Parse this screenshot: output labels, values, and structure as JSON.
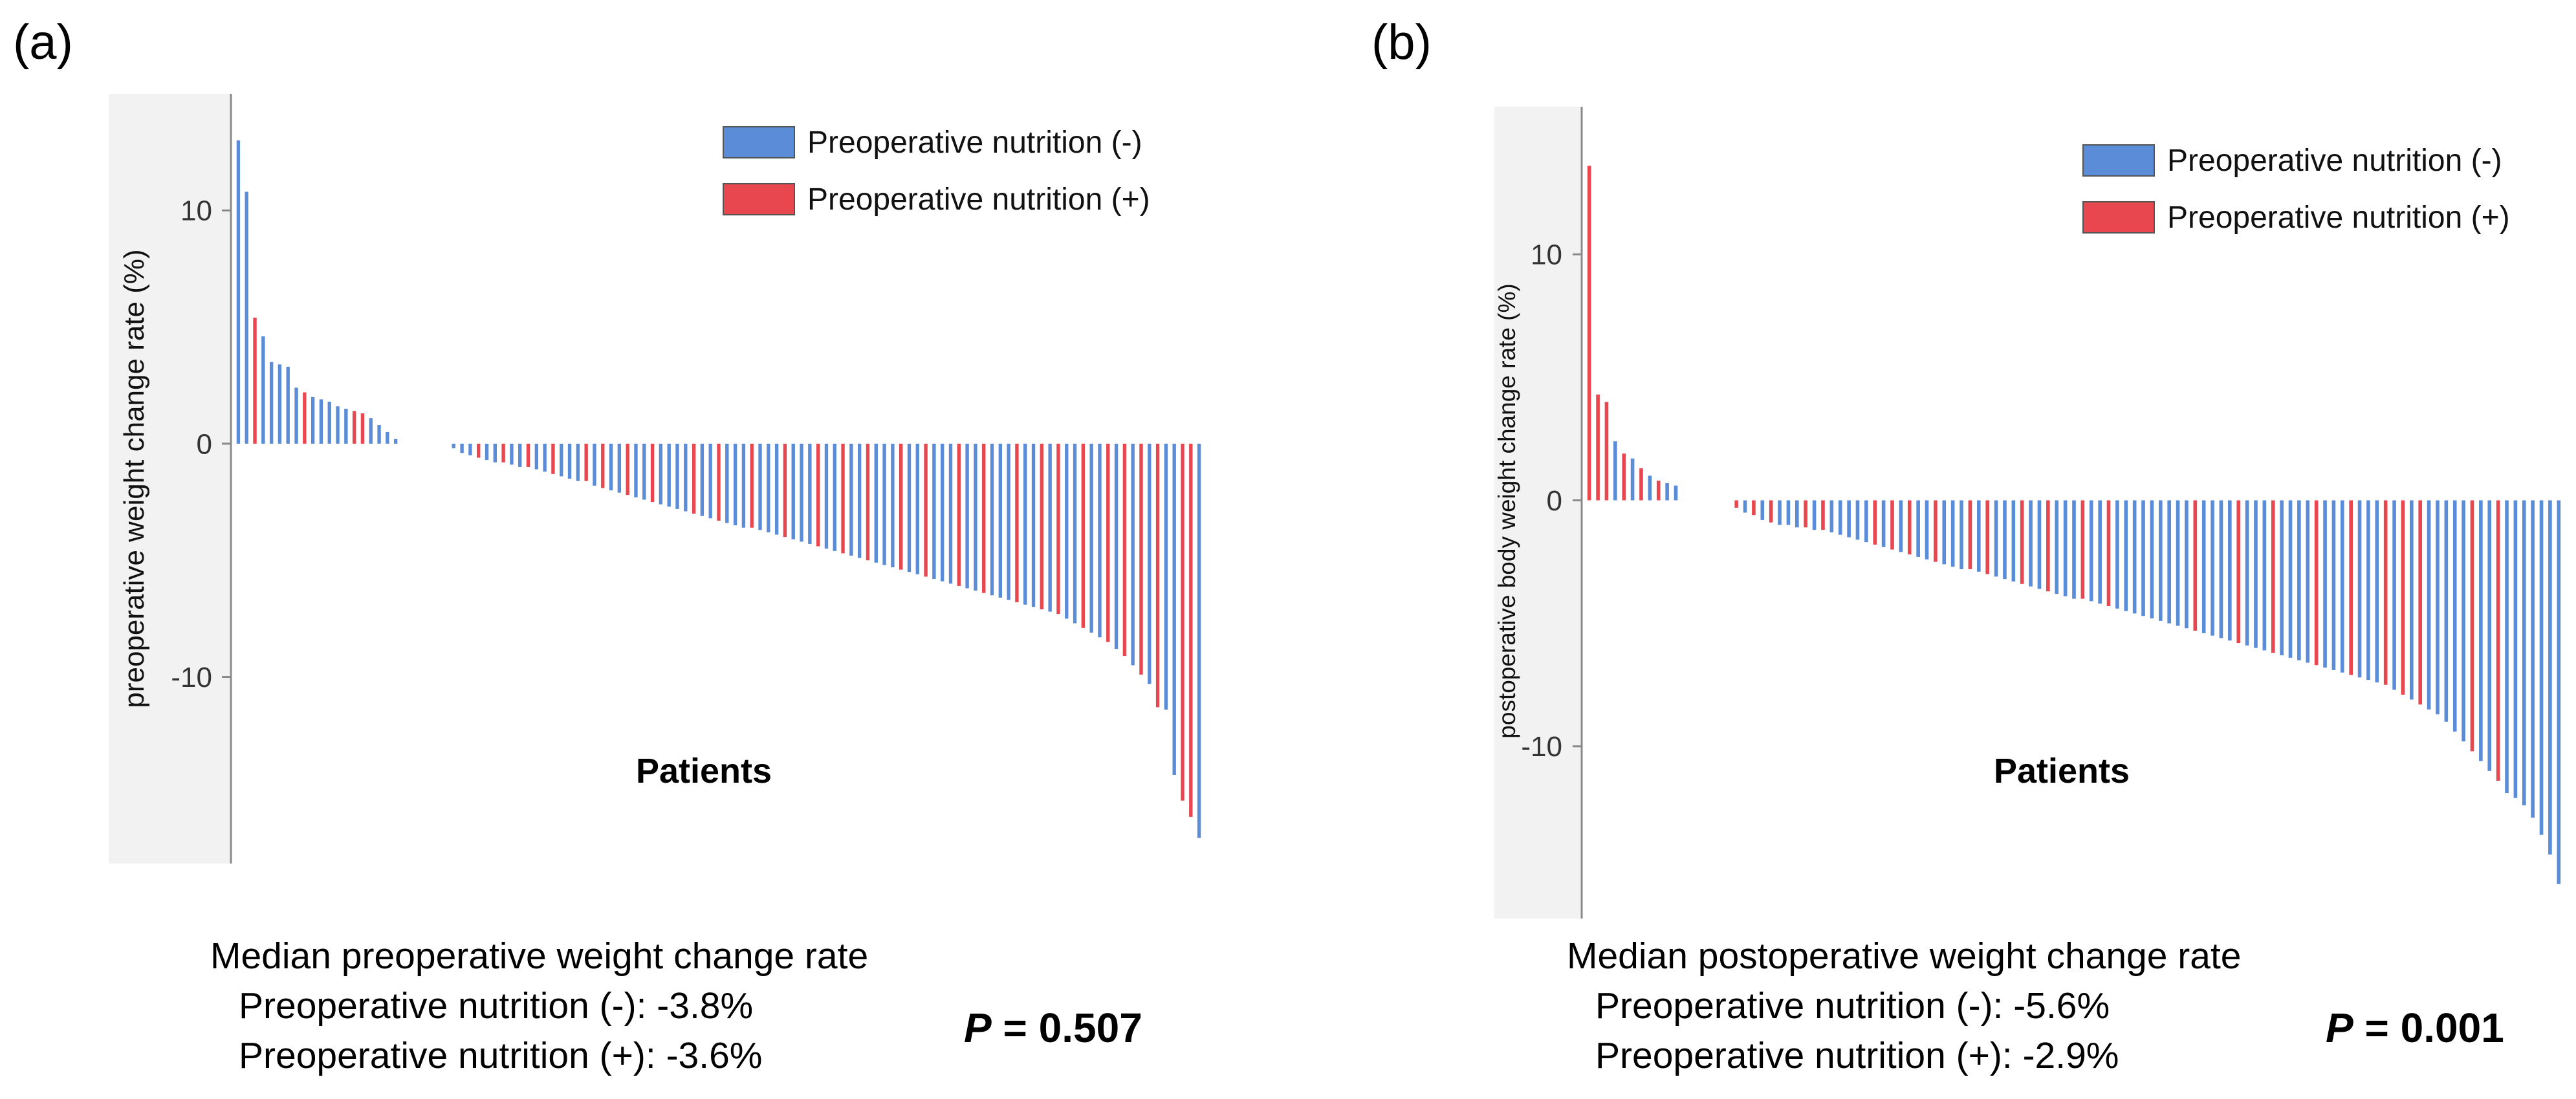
{
  "panels": [
    {
      "label": "(a)",
      "median_title": "Median preoperative weight change rate",
      "median_lines": [
        "Preoperative nutrition (-): -3.8%",
        "Preoperative nutrition (+): -3.6%"
      ],
      "p_letter": "P",
      "p_rest": "= 0.507"
    },
    {
      "label": "(b)",
      "median_title": "Median postoperative weight change rate",
      "median_lines": [
        "Preoperative nutrition (-): -5.6%",
        "Preoperative nutrition (+): -2.9%"
      ],
      "p_letter": "P",
      "p_rest": "= 0.001"
    }
  ],
  "colors": {
    "blue": "#5b8cd8",
    "red": "#e8474f",
    "plot_bg": "#f2f2f2",
    "axis": "#8a8a8a"
  },
  "chart_data": [
    {
      "type": "bar",
      "title": "",
      "xlabel": "Patients",
      "ylabel": "preoperative weight change rate (%)",
      "ylim": [
        -18,
        15
      ],
      "yticks": [
        10,
        0,
        -10
      ],
      "ytick_labels": [
        "10",
        "0",
        "-10"
      ],
      "legend": {
        "position": "top-right",
        "entries": [
          {
            "label": "Preoperative nutrition (-)",
            "color": "#5b8cd8"
          },
          {
            "label": "Preoperative nutrition (+)",
            "color": "#e8474f"
          }
        ]
      },
      "series": [
        {
          "name": "Preoperative nutrition (-)",
          "color": "#5b8cd8"
        },
        {
          "name": "Preoperative nutrition (+)",
          "color": "#e8474f"
        }
      ],
      "bars": [
        {
          "v": 13.0,
          "g": 0
        },
        {
          "v": 10.8,
          "g": 0
        },
        {
          "v": 5.4,
          "g": 1
        },
        {
          "v": 4.6,
          "g": 0
        },
        {
          "v": 3.5,
          "g": 0
        },
        {
          "v": 3.4,
          "g": 0
        },
        {
          "v": 3.3,
          "g": 0
        },
        {
          "v": 2.4,
          "g": 0
        },
        {
          "v": 2.2,
          "g": 1
        },
        {
          "v": 2.0,
          "g": 0
        },
        {
          "v": 1.9,
          "g": 0
        },
        {
          "v": 1.8,
          "g": 0
        },
        {
          "v": 1.6,
          "g": 0
        },
        {
          "v": 1.5,
          "g": 0
        },
        {
          "v": 1.4,
          "g": 1
        },
        {
          "v": 1.3,
          "g": 1
        },
        {
          "v": 1.1,
          "g": 0
        },
        {
          "v": 0.8,
          "g": 0
        },
        {
          "v": 0.5,
          "g": 0
        },
        {
          "v": 0.2,
          "g": 0
        },
        {
          "v": 0.0,
          "g": 0
        },
        {
          "v": 0.0,
          "g": 0
        },
        {
          "v": 0.0,
          "g": 0
        },
        {
          "v": 0.0,
          "g": 0
        },
        {
          "v": 0.0,
          "g": 0
        },
        {
          "v": 0.0,
          "g": 0
        },
        {
          "v": -0.2,
          "g": 0
        },
        {
          "v": -0.4,
          "g": 0
        },
        {
          "v": -0.5,
          "g": 0
        },
        {
          "v": -0.6,
          "g": 1
        },
        {
          "v": -0.7,
          "g": 0
        },
        {
          "v": -0.8,
          "g": 0
        },
        {
          "v": -0.8,
          "g": 1
        },
        {
          "v": -0.9,
          "g": 0
        },
        {
          "v": -1.0,
          "g": 0
        },
        {
          "v": -1.0,
          "g": 1
        },
        {
          "v": -1.1,
          "g": 0
        },
        {
          "v": -1.2,
          "g": 0
        },
        {
          "v": -1.3,
          "g": 1
        },
        {
          "v": -1.4,
          "g": 0
        },
        {
          "v": -1.5,
          "g": 0
        },
        {
          "v": -1.6,
          "g": 0
        },
        {
          "v": -1.6,
          "g": 1
        },
        {
          "v": -1.8,
          "g": 0
        },
        {
          "v": -1.9,
          "g": 1
        },
        {
          "v": -2.0,
          "g": 0
        },
        {
          "v": -2.1,
          "g": 0
        },
        {
          "v": -2.2,
          "g": 1
        },
        {
          "v": -2.3,
          "g": 0
        },
        {
          "v": -2.4,
          "g": 0
        },
        {
          "v": -2.5,
          "g": 1
        },
        {
          "v": -2.6,
          "g": 0
        },
        {
          "v": -2.7,
          "g": 0
        },
        {
          "v": -2.8,
          "g": 0
        },
        {
          "v": -2.9,
          "g": 0
        },
        {
          "v": -3.0,
          "g": 1
        },
        {
          "v": -3.1,
          "g": 0
        },
        {
          "v": -3.2,
          "g": 0
        },
        {
          "v": -3.3,
          "g": 1
        },
        {
          "v": -3.4,
          "g": 0
        },
        {
          "v": -3.5,
          "g": 0
        },
        {
          "v": -3.6,
          "g": 0
        },
        {
          "v": -3.6,
          "g": 1
        },
        {
          "v": -3.7,
          "g": 0
        },
        {
          "v": -3.8,
          "g": 0
        },
        {
          "v": -3.9,
          "g": 0
        },
        {
          "v": -4.0,
          "g": 1
        },
        {
          "v": -4.1,
          "g": 0
        },
        {
          "v": -4.2,
          "g": 0
        },
        {
          "v": -4.3,
          "g": 0
        },
        {
          "v": -4.4,
          "g": 1
        },
        {
          "v": -4.5,
          "g": 0
        },
        {
          "v": -4.6,
          "g": 0
        },
        {
          "v": -4.7,
          "g": 1
        },
        {
          "v": -4.8,
          "g": 0
        },
        {
          "v": -4.9,
          "g": 0
        },
        {
          "v": -5.0,
          "g": 1
        },
        {
          "v": -5.1,
          "g": 0
        },
        {
          "v": -5.2,
          "g": 0
        },
        {
          "v": -5.3,
          "g": 0
        },
        {
          "v": -5.4,
          "g": 1
        },
        {
          "v": -5.5,
          "g": 0
        },
        {
          "v": -5.6,
          "g": 0
        },
        {
          "v": -5.7,
          "g": 1
        },
        {
          "v": -5.8,
          "g": 0
        },
        {
          "v": -5.9,
          "g": 0
        },
        {
          "v": -6.0,
          "g": 0
        },
        {
          "v": -6.1,
          "g": 1
        },
        {
          "v": -6.2,
          "g": 0
        },
        {
          "v": -6.3,
          "g": 0
        },
        {
          "v": -6.4,
          "g": 1
        },
        {
          "v": -6.5,
          "g": 0
        },
        {
          "v": -6.6,
          "g": 0
        },
        {
          "v": -6.7,
          "g": 0
        },
        {
          "v": -6.8,
          "g": 1
        },
        {
          "v": -6.9,
          "g": 0
        },
        {
          "v": -7.0,
          "g": 0
        },
        {
          "v": -7.1,
          "g": 1
        },
        {
          "v": -7.2,
          "g": 0
        },
        {
          "v": -7.3,
          "g": 1
        },
        {
          "v": -7.5,
          "g": 0
        },
        {
          "v": -7.7,
          "g": 0
        },
        {
          "v": -7.9,
          "g": 1
        },
        {
          "v": -8.1,
          "g": 0
        },
        {
          "v": -8.3,
          "g": 0
        },
        {
          "v": -8.5,
          "g": 1
        },
        {
          "v": -8.8,
          "g": 0
        },
        {
          "v": -9.1,
          "g": 1
        },
        {
          "v": -9.5,
          "g": 0
        },
        {
          "v": -9.9,
          "g": 1
        },
        {
          "v": -10.3,
          "g": 0
        },
        {
          "v": -11.3,
          "g": 1
        },
        {
          "v": -11.4,
          "g": 0
        },
        {
          "v": -14.2,
          "g": 0
        },
        {
          "v": -15.3,
          "g": 1
        },
        {
          "v": -16.0,
          "g": 1
        },
        {
          "v": -16.9,
          "g": 0
        }
      ]
    },
    {
      "type": "bar",
      "title": "",
      "xlabel": "Patients",
      "ylabel": "postoperative body weight change rate (%)",
      "ylim": [
        -17,
        16
      ],
      "yticks": [
        10,
        0,
        -10
      ],
      "ytick_labels": [
        "10",
        "0",
        "-10"
      ],
      "legend": {
        "position": "top-right",
        "entries": [
          {
            "label": "Preoperative nutrition (-)",
            "color": "#5b8cd8"
          },
          {
            "label": "Preoperative nutrition (+)",
            "color": "#e8474f"
          }
        ]
      },
      "series": [
        {
          "name": "Preoperative nutrition (-)",
          "color": "#5b8cd8"
        },
        {
          "name": "Preoperative nutrition (+)",
          "color": "#e8474f"
        }
      ],
      "bars": [
        {
          "v": 13.6,
          "g": 1
        },
        {
          "v": 4.3,
          "g": 1
        },
        {
          "v": 4.0,
          "g": 1
        },
        {
          "v": 2.4,
          "g": 0
        },
        {
          "v": 1.9,
          "g": 1
        },
        {
          "v": 1.7,
          "g": 0
        },
        {
          "v": 1.3,
          "g": 1
        },
        {
          "v": 1.0,
          "g": 0
        },
        {
          "v": 0.8,
          "g": 1
        },
        {
          "v": 0.7,
          "g": 0
        },
        {
          "v": 0.6,
          "g": 0
        },
        {
          "v": 0.0,
          "g": 0
        },
        {
          "v": 0.0,
          "g": 0
        },
        {
          "v": 0.0,
          "g": 0
        },
        {
          "v": 0.0,
          "g": 0
        },
        {
          "v": 0.0,
          "g": 0
        },
        {
          "v": 0.0,
          "g": 0
        },
        {
          "v": -0.3,
          "g": 1
        },
        {
          "v": -0.5,
          "g": 0
        },
        {
          "v": -0.6,
          "g": 1
        },
        {
          "v": -0.8,
          "g": 0
        },
        {
          "v": -0.9,
          "g": 1
        },
        {
          "v": -1.0,
          "g": 0
        },
        {
          "v": -1.0,
          "g": 0
        },
        {
          "v": -1.1,
          "g": 0
        },
        {
          "v": -1.1,
          "g": 1
        },
        {
          "v": -1.2,
          "g": 0
        },
        {
          "v": -1.2,
          "g": 1
        },
        {
          "v": -1.3,
          "g": 0
        },
        {
          "v": -1.4,
          "g": 0
        },
        {
          "v": -1.5,
          "g": 0
        },
        {
          "v": -1.6,
          "g": 0
        },
        {
          "v": -1.7,
          "g": 0
        },
        {
          "v": -1.8,
          "g": 1
        },
        {
          "v": -1.9,
          "g": 0
        },
        {
          "v": -2.0,
          "g": 1
        },
        {
          "v": -2.1,
          "g": 0
        },
        {
          "v": -2.2,
          "g": 1
        },
        {
          "v": -2.3,
          "g": 0
        },
        {
          "v": -2.4,
          "g": 0
        },
        {
          "v": -2.5,
          "g": 1
        },
        {
          "v": -2.6,
          "g": 0
        },
        {
          "v": -2.7,
          "g": 0
        },
        {
          "v": -2.8,
          "g": 0
        },
        {
          "v": -2.8,
          "g": 1
        },
        {
          "v": -2.9,
          "g": 0
        },
        {
          "v": -3.0,
          "g": 1
        },
        {
          "v": -3.1,
          "g": 0
        },
        {
          "v": -3.2,
          "g": 0
        },
        {
          "v": -3.3,
          "g": 0
        },
        {
          "v": -3.4,
          "g": 1
        },
        {
          "v": -3.5,
          "g": 0
        },
        {
          "v": -3.6,
          "g": 0
        },
        {
          "v": -3.7,
          "g": 1
        },
        {
          "v": -3.8,
          "g": 0
        },
        {
          "v": -3.9,
          "g": 0
        },
        {
          "v": -4.0,
          "g": 0
        },
        {
          "v": -4.0,
          "g": 1
        },
        {
          "v": -4.1,
          "g": 0
        },
        {
          "v": -4.2,
          "g": 0
        },
        {
          "v": -4.3,
          "g": 1
        },
        {
          "v": -4.4,
          "g": 0
        },
        {
          "v": -4.5,
          "g": 0
        },
        {
          "v": -4.6,
          "g": 0
        },
        {
          "v": -4.7,
          "g": 0
        },
        {
          "v": -4.8,
          "g": 0
        },
        {
          "v": -4.9,
          "g": 0
        },
        {
          "v": -5.0,
          "g": 0
        },
        {
          "v": -5.1,
          "g": 0
        },
        {
          "v": -5.2,
          "g": 0
        },
        {
          "v": -5.3,
          "g": 1
        },
        {
          "v": -5.4,
          "g": 0
        },
        {
          "v": -5.5,
          "g": 0
        },
        {
          "v": -5.6,
          "g": 0
        },
        {
          "v": -5.7,
          "g": 0
        },
        {
          "v": -5.8,
          "g": 1
        },
        {
          "v": -5.9,
          "g": 0
        },
        {
          "v": -6.0,
          "g": 0
        },
        {
          "v": -6.1,
          "g": 0
        },
        {
          "v": -6.2,
          "g": 1
        },
        {
          "v": -6.3,
          "g": 0
        },
        {
          "v": -6.4,
          "g": 0
        },
        {
          "v": -6.5,
          "g": 0
        },
        {
          "v": -6.6,
          "g": 0
        },
        {
          "v": -6.7,
          "g": 1
        },
        {
          "v": -6.8,
          "g": 0
        },
        {
          "v": -6.9,
          "g": 0
        },
        {
          "v": -7.0,
          "g": 0
        },
        {
          "v": -7.1,
          "g": 1
        },
        {
          "v": -7.2,
          "g": 0
        },
        {
          "v": -7.3,
          "g": 0
        },
        {
          "v": -7.4,
          "g": 0
        },
        {
          "v": -7.5,
          "g": 1
        },
        {
          "v": -7.7,
          "g": 0
        },
        {
          "v": -7.9,
          "g": 1
        },
        {
          "v": -8.1,
          "g": 0
        },
        {
          "v": -8.3,
          "g": 1
        },
        {
          "v": -8.5,
          "g": 0
        },
        {
          "v": -8.7,
          "g": 0
        },
        {
          "v": -9.0,
          "g": 0
        },
        {
          "v": -9.4,
          "g": 0
        },
        {
          "v": -9.8,
          "g": 0
        },
        {
          "v": -10.2,
          "g": 1
        },
        {
          "v": -10.6,
          "g": 0
        },
        {
          "v": -11.0,
          "g": 0
        },
        {
          "v": -11.4,
          "g": 1
        },
        {
          "v": -11.9,
          "g": 0
        },
        {
          "v": -12.1,
          "g": 0
        },
        {
          "v": -12.4,
          "g": 0
        },
        {
          "v": -12.9,
          "g": 0
        },
        {
          "v": -13.6,
          "g": 0
        },
        {
          "v": -14.4,
          "g": 0
        },
        {
          "v": -15.6,
          "g": 0
        }
      ]
    }
  ]
}
